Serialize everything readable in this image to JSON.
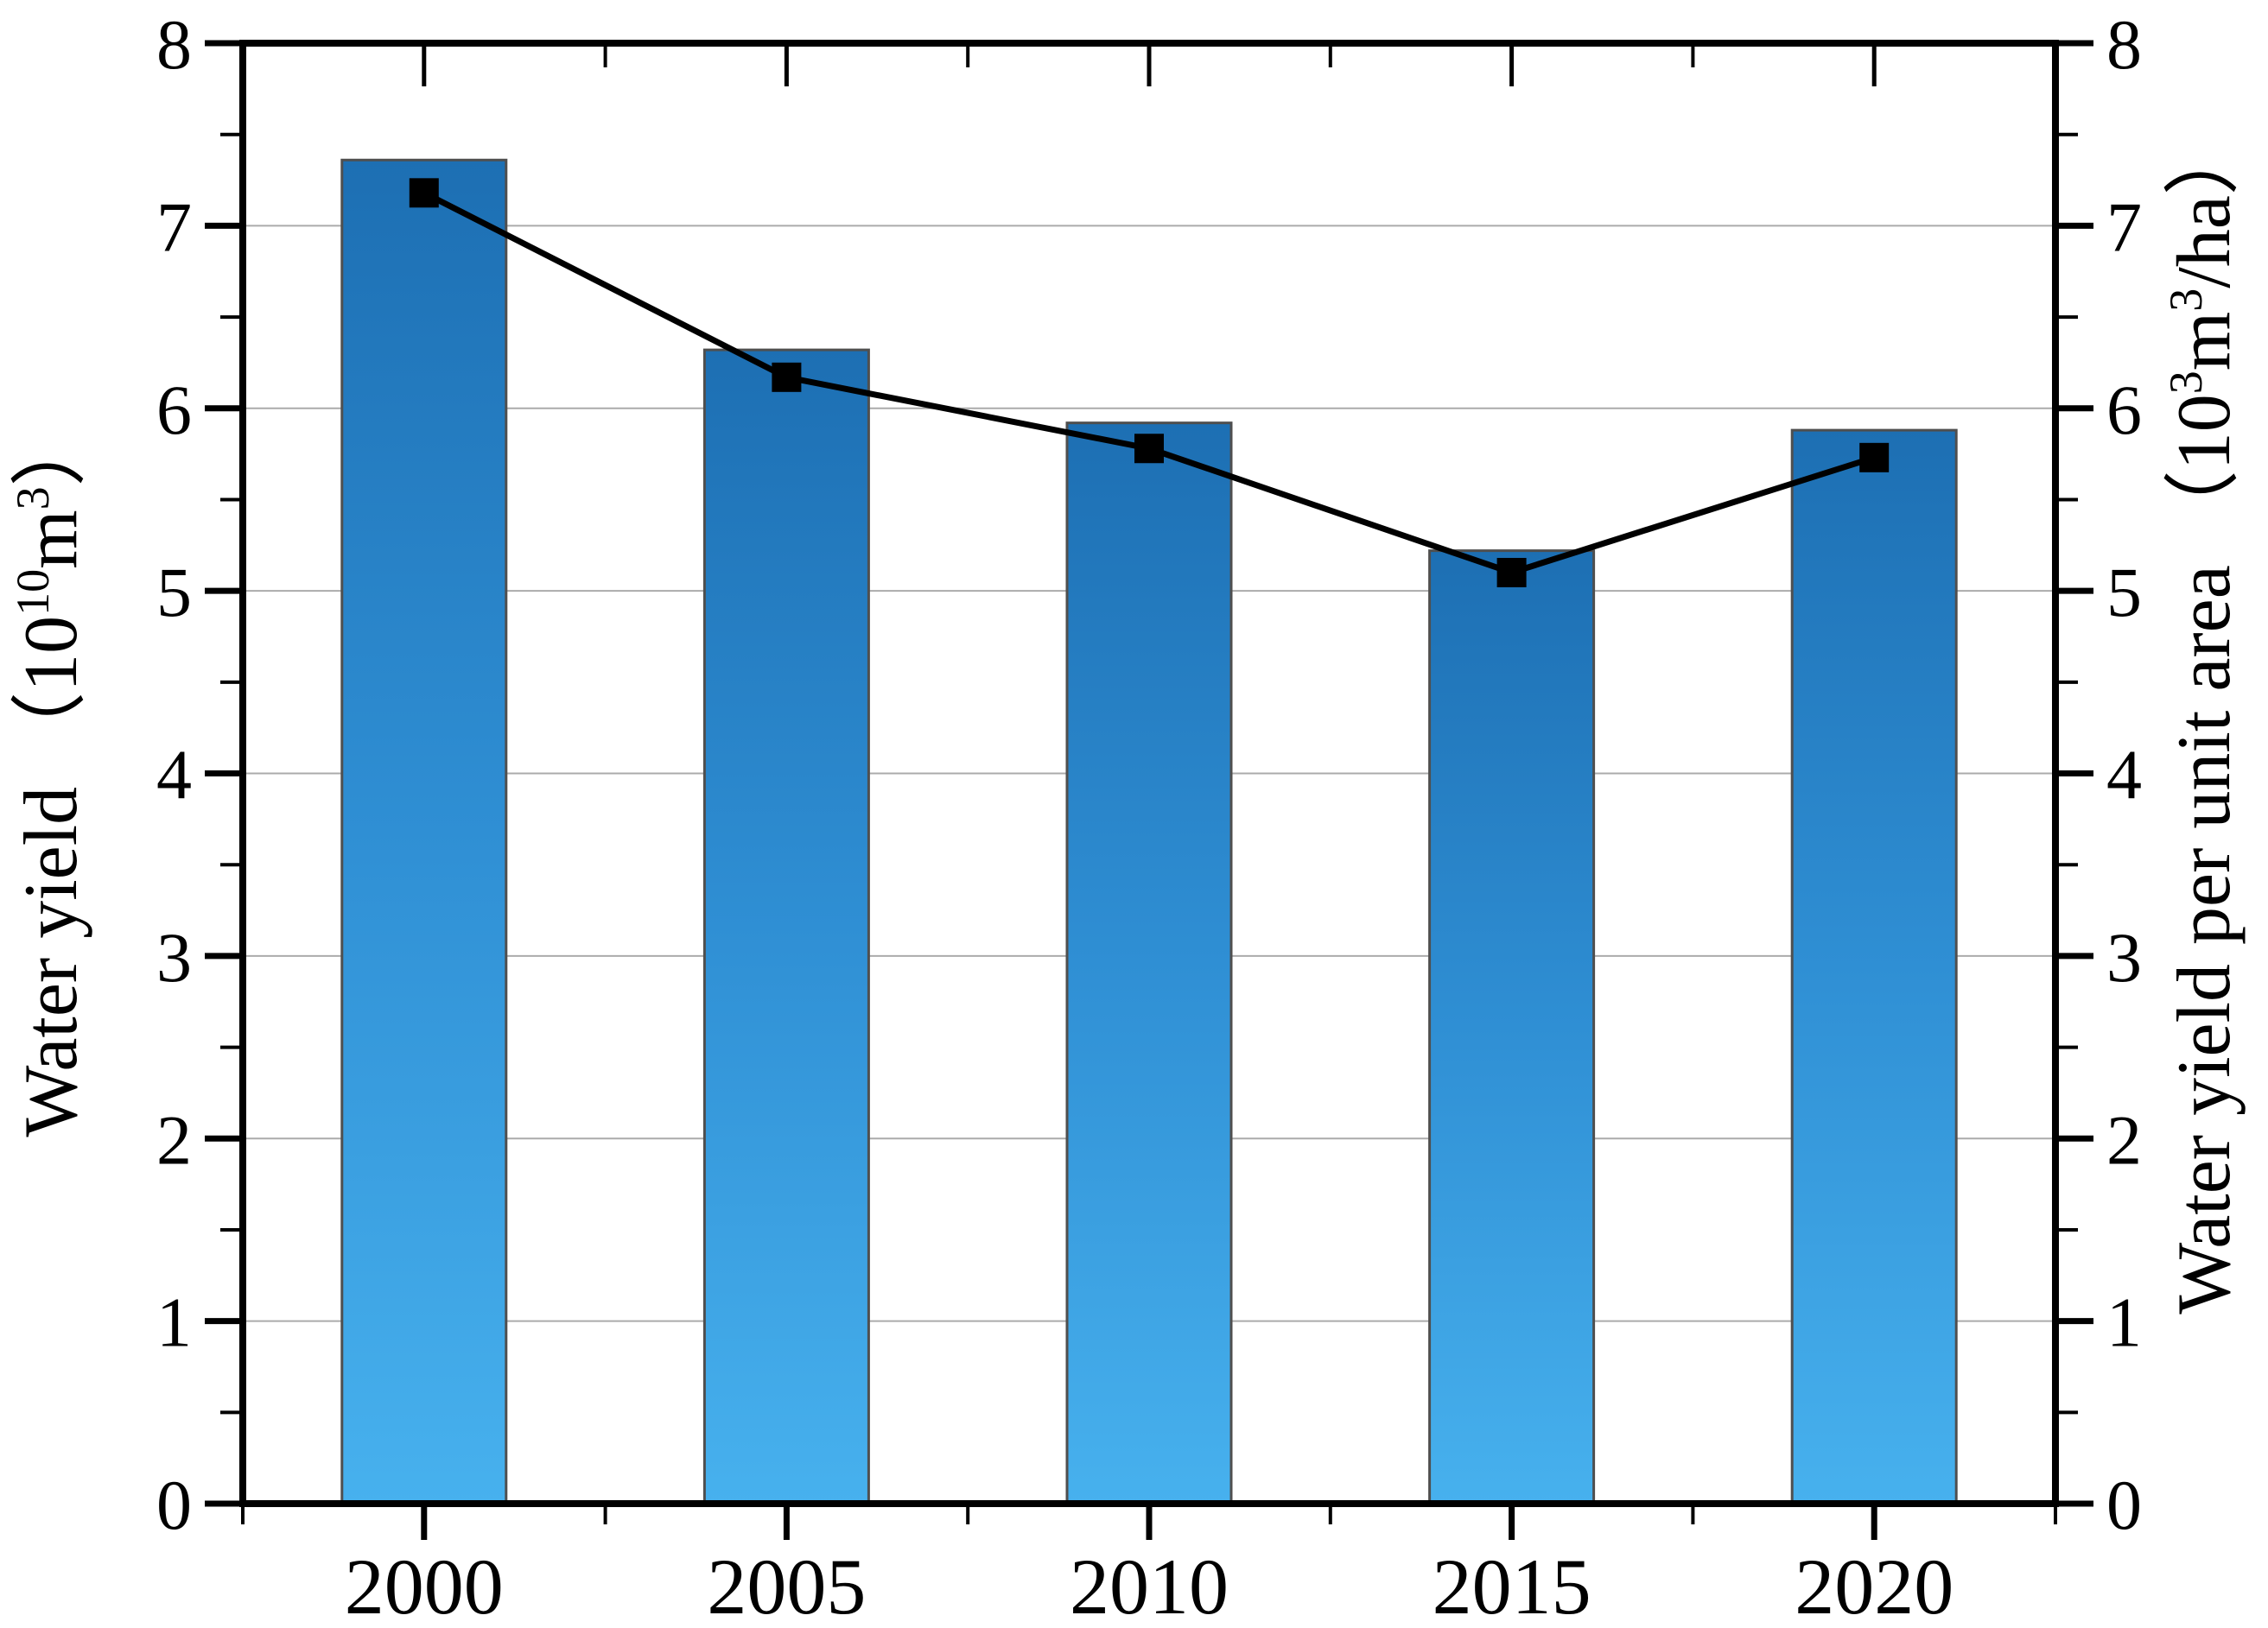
{
  "chart_data": {
    "type": "bar",
    "subtype": "bar-with-line-overlay",
    "categories": [
      "2000",
      "2005",
      "2010",
      "2015",
      "2020"
    ],
    "series": [
      {
        "name": "Water yield",
        "type": "bar",
        "axis": "left",
        "values": [
          7.36,
          6.32,
          5.92,
          5.22,
          5.88
        ]
      },
      {
        "name": "Water yield per unit area",
        "type": "line",
        "marker": "square",
        "axis": "right",
        "values": [
          7.18,
          6.17,
          5.78,
          5.1,
          5.73
        ]
      }
    ],
    "left_axis": {
      "title_text": "Water yield （10¹⁰m³）",
      "title_parts": [
        {
          "text": "Water yield （10"
        },
        {
          "text": "10",
          "sup": true
        },
        {
          "text": "m"
        },
        {
          "text": "3",
          "sup": true
        },
        {
          "text": "）"
        }
      ],
      "min": 0,
      "max": 8,
      "major_step": 1,
      "minor_step": 0.5,
      "tick_labels": [
        "0",
        "1",
        "2",
        "3",
        "4",
        "5",
        "6",
        "7",
        "8"
      ]
    },
    "right_axis": {
      "title_text": "Water yield per unit area （10³m³/ha）",
      "title_parts": [
        {
          "text": "Water yield per unit area （10"
        },
        {
          "text": "3",
          "sup": true
        },
        {
          "text": "m"
        },
        {
          "text": "3",
          "sup": true
        },
        {
          "text": "/ha）"
        }
      ],
      "min": 0,
      "max": 8,
      "major_step": 1,
      "minor_step": 0.5,
      "tick_labels": [
        "0",
        "1",
        "2",
        "3",
        "4",
        "5",
        "6",
        "7",
        "8"
      ]
    },
    "x_axis": {
      "tick_labels": [
        "2000",
        "2005",
        "2010",
        "2015",
        "2020"
      ]
    },
    "grid": "horizontal-major-only",
    "legend": "none",
    "styles": {
      "bar_top_color": "#1d6fb3",
      "bar_mid_color": "#2f8fd4",
      "bar_bottom_color": "#47b1ee",
      "bar_border_color": "#4f4f4f",
      "line_color": "#000000",
      "marker_color": "#000000",
      "grid_color": "#ababab",
      "axis_color": "#000000",
      "background_color": "#ffffff"
    }
  }
}
